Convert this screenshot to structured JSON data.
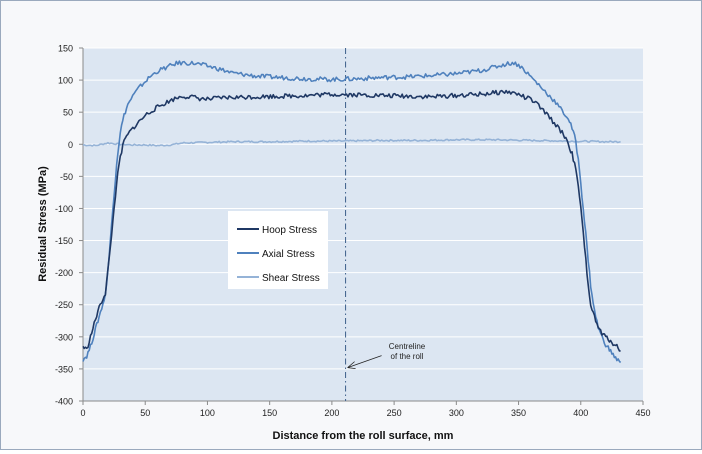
{
  "chart_data": {
    "type": "line",
    "title": "",
    "xlabel": "Distance from the roll surface, mm",
    "ylabel": "Residual Stress (MPa)",
    "xlim": [
      0,
      450
    ],
    "ylim": [
      -400,
      150
    ],
    "xticks": [
      0,
      50,
      100,
      150,
      200,
      250,
      300,
      350,
      400,
      450
    ],
    "yticks": [
      150,
      100,
      50,
      0,
      -50,
      -100,
      -150,
      -200,
      -250,
      -300,
      -350,
      -400
    ],
    "grid": "horizontal",
    "legend_position": "center-left inside plot",
    "series": [
      {
        "name": "Hoop Stress",
        "color": "#1f3864",
        "x": [
          0,
          3,
          6,
          9,
          12,
          15,
          18,
          21,
          24,
          27,
          30,
          33,
          36,
          40,
          45,
          50,
          55,
          60,
          65,
          70,
          75,
          80,
          85,
          90,
          95,
          100,
          110,
          120,
          140,
          160,
          180,
          200,
          220,
          240,
          260,
          280,
          300,
          320,
          340,
          350,
          355,
          360,
          365,
          370,
          375,
          380,
          385,
          388,
          390,
          393,
          396,
          399,
          402,
          405,
          408,
          411,
          414,
          417,
          420,
          423,
          426,
          429,
          432
        ],
        "y": [
          -315,
          -320,
          -300,
          -280,
          -260,
          -245,
          -232,
          -180,
          -120,
          -60,
          -20,
          5,
          15,
          25,
          35,
          45,
          52,
          58,
          63,
          68,
          72,
          75,
          74,
          73,
          71,
          70,
          72,
          73,
          74,
          75,
          76,
          78,
          77,
          76,
          75,
          74,
          76,
          78,
          82,
          78,
          73,
          70,
          62,
          52,
          42,
          30,
          18,
          10,
          0,
          -15,
          -40,
          -80,
          -140,
          -200,
          -250,
          -270,
          -285,
          -295,
          -300,
          -305,
          -310,
          -315,
          -322
        ]
      },
      {
        "name": "Axial Stress",
        "color": "#4f81bd",
        "x": [
          0,
          3,
          6,
          9,
          12,
          15,
          18,
          21,
          24,
          27,
          30,
          33,
          36,
          40,
          45,
          50,
          55,
          60,
          65,
          70,
          75,
          80,
          90,
          100,
          110,
          120,
          140,
          160,
          180,
          200,
          220,
          240,
          260,
          280,
          300,
          320,
          330,
          340,
          345,
          350,
          355,
          360,
          365,
          370,
          375,
          380,
          385,
          390,
          393,
          396,
          399,
          402,
          405,
          408,
          411,
          414,
          417,
          420,
          423,
          426,
          429,
          432
        ],
        "y": [
          -335,
          -330,
          -315,
          -295,
          -275,
          -255,
          -235,
          -175,
          -100,
          -30,
          20,
          45,
          62,
          75,
          88,
          98,
          107,
          114,
          118,
          122,
          126,
          127,
          126,
          122,
          117,
          111,
          106,
          104,
          102,
          101,
          102,
          104,
          105,
          107,
          110,
          115,
          120,
          125,
          127,
          124,
          115,
          105,
          95,
          85,
          75,
          65,
          52,
          40,
          25,
          5,
          -40,
          -100,
          -160,
          -220,
          -260,
          -285,
          -300,
          -312,
          -320,
          -328,
          -335,
          -340
        ]
      },
      {
        "name": "Shear Stress",
        "color": "#95b3d7",
        "x": [
          0,
          10,
          20,
          30,
          40,
          50,
          60,
          70,
          80,
          100,
          120,
          150,
          180,
          210,
          240,
          270,
          300,
          330,
          360,
          390,
          420,
          432
        ],
        "y": [
          -1,
          -2,
          2,
          0,
          -1,
          -1,
          -2,
          -1,
          2,
          3,
          4,
          4,
          5,
          5,
          6,
          6,
          7,
          7,
          6,
          5,
          4,
          4
        ]
      }
    ],
    "annotation": {
      "text_lines": [
        "Centreline",
        "of the roll"
      ],
      "centerline_x": 211,
      "arrow_target_y": -348
    }
  }
}
